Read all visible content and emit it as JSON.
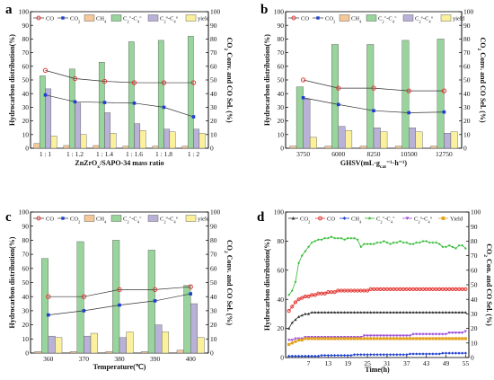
{
  "chart_data": [
    {
      "panel": "a",
      "type": "bar",
      "xlabel": "ZnZrOx/SAPO-34 mass ratio",
      "ylabel": "Hydrocarbon distribution(%)",
      "ylabel_right": "CO2 Conv. and CO Sel. (%)",
      "ylim": [
        0,
        100
      ],
      "ylim_right": [
        0,
        100
      ],
      "categories": [
        "1 : 1",
        "1 : 1.2",
        "1 : 1.4",
        "1 : 1.6",
        "1 : 1.8",
        "1 : 2"
      ],
      "series": [
        {
          "name": "CH4",
          "kind": "bar",
          "color": "#f5c89a",
          "values": [
            3.5,
            2,
            2,
            1.5,
            1.5,
            1.5
          ]
        },
        {
          "name": "C2=-C4=",
          "kind": "bar",
          "color": "#98d49c",
          "values": [
            53,
            58,
            63,
            78,
            79,
            82
          ]
        },
        {
          "name": "C2o-C4o",
          "kind": "bar",
          "color": "#b9b1d8",
          "values": [
            43.5,
            33,
            26,
            18,
            14,
            14
          ]
        },
        {
          "name": "yield",
          "kind": "bar",
          "color": "#fbf19c",
          "values": [
            9,
            10,
            11,
            13,
            12,
            11
          ]
        },
        {
          "name": "CO",
          "kind": "line",
          "axis": "right",
          "color": "#e53935",
          "values": [
            57,
            51,
            49,
            48,
            48,
            48
          ]
        },
        {
          "name": "CO2",
          "kind": "line",
          "axis": "right",
          "color": "#1e3fd0",
          "values": [
            39,
            34,
            33.5,
            33,
            30,
            23
          ]
        }
      ]
    },
    {
      "panel": "b",
      "type": "bar",
      "xlabel": "GHSV(mL·gcat⁻¹·h⁻¹)",
      "ylabel": "Hydrocarbon distribution(%)",
      "ylabel_right": "CO2 Conv. and CO Sel. (%)",
      "ylim": [
        0,
        100
      ],
      "ylim_right": [
        0,
        100
      ],
      "categories": [
        "3750",
        "6000",
        "8250",
        "10500",
        "12750"
      ],
      "series": [
        {
          "name": "CH4",
          "kind": "bar",
          "color": "#f5c89a",
          "values": [
            1.5,
            1.5,
            1.5,
            1.5,
            1.5
          ]
        },
        {
          "name": "C2=-C4=",
          "kind": "bar",
          "color": "#98d49c",
          "values": [
            45,
            76,
            76,
            79,
            80
          ]
        },
        {
          "name": "C2o-C4o",
          "kind": "bar",
          "color": "#b9b1d8",
          "values": [
            36,
            16,
            15,
            15,
            11
          ]
        },
        {
          "name": "yield",
          "kind": "bar",
          "color": "#fbf19c",
          "values": [
            8,
            13,
            12,
            12,
            12
          ]
        },
        {
          "name": "CO",
          "kind": "line",
          "axis": "right",
          "color": "#e53935",
          "values": [
            50,
            44,
            44,
            42,
            42
          ]
        },
        {
          "name": "CO2",
          "kind": "line",
          "axis": "right",
          "color": "#1e3fd0",
          "values": [
            37,
            32,
            27.5,
            26,
            26.5
          ]
        }
      ]
    },
    {
      "panel": "c",
      "type": "bar",
      "xlabel": "Temperature(℃)",
      "ylabel": "Hydrocarbon distribution(%)",
      "ylabel_right": "CO2 Conv. and CO Sel. (%)",
      "ylim": [
        0,
        100
      ],
      "ylim_right": [
        0,
        100
      ],
      "categories": [
        "360",
        "370",
        "380",
        "390",
        "400"
      ],
      "series": [
        {
          "name": "CH4",
          "kind": "bar",
          "color": "#f5c89a",
          "values": [
            1,
            1,
            1,
            1,
            2
          ]
        },
        {
          "name": "C2=-C4=",
          "kind": "bar",
          "color": "#98d49c",
          "values": [
            67,
            79,
            80,
            73,
            48
          ]
        },
        {
          "name": "C2o-C4o",
          "kind": "bar",
          "color": "#b9b1d8",
          "values": [
            12,
            12,
            11,
            20,
            35
          ]
        },
        {
          "name": "yield",
          "kind": "bar",
          "color": "#fbf19c",
          "values": [
            11,
            14,
            15,
            15,
            11
          ]
        },
        {
          "name": "CO",
          "kind": "line",
          "axis": "right",
          "color": "#e53935",
          "values": [
            40,
            40,
            45,
            45,
            47
          ]
        },
        {
          "name": "CO2",
          "kind": "line",
          "axis": "right",
          "color": "#1e3fd0",
          "values": [
            27,
            30,
            34,
            37,
            42
          ]
        }
      ]
    },
    {
      "panel": "d",
      "type": "line",
      "xlabel": "Time(h)",
      "ylabel": "Hydrocarbon distribution(%)",
      "ylabel_right": "CO2 Con. and CO Sel. (%)",
      "ylim": [
        0,
        100
      ],
      "ylim_right": [
        0,
        100
      ],
      "xlim": [
        0,
        56
      ],
      "xticks": [
        7,
        13,
        19,
        25,
        31,
        37,
        43,
        49,
        55
      ],
      "x": [
        1,
        2,
        3,
        4,
        5,
        6,
        7,
        8,
        9,
        10,
        11,
        12,
        13,
        14,
        15,
        16,
        17,
        18,
        19,
        20,
        21,
        22,
        23,
        24,
        25,
        26,
        27,
        28,
        29,
        30,
        31,
        32,
        33,
        34,
        35,
        36,
        37,
        38,
        39,
        40,
        41,
        42,
        43,
        44,
        45,
        46,
        47,
        48,
        49,
        50,
        51,
        52,
        53,
        54,
        55
      ],
      "series": [
        {
          "name": "CO2",
          "marker": "triangle",
          "color": "#333333",
          "values": [
            20,
            24,
            26,
            28,
            29,
            30,
            30,
            31,
            31,
            31,
            31,
            31,
            31,
            31,
            31,
            31,
            31,
            31,
            31,
            31,
            31,
            31,
            31,
            31,
            31,
            31,
            31,
            31,
            31,
            31,
            31,
            31,
            31,
            31,
            31,
            31,
            31,
            31,
            31,
            31,
            31,
            31,
            31,
            31,
            31,
            31,
            31,
            31,
            31,
            31,
            31,
            31,
            31,
            31,
            31
          ]
        },
        {
          "name": "CO",
          "marker": "circle",
          "color": "#e53935",
          "values": [
            32,
            35,
            38,
            40,
            41,
            42,
            42,
            43,
            43,
            44,
            44,
            44,
            45,
            45,
            45,
            46,
            46,
            46,
            46,
            46,
            46,
            46,
            46,
            46,
            46,
            47,
            47,
            47,
            47,
            47,
            47,
            47,
            47,
            47,
            47,
            47,
            47,
            47,
            47,
            47,
            47,
            47,
            47,
            47,
            47,
            47,
            47,
            47,
            47,
            47,
            47,
            47,
            47,
            47,
            47
          ]
        },
        {
          "name": "CH4",
          "marker": "diamond",
          "color": "#1e3fd0",
          "values": [
            1,
            1,
            1,
            1,
            1,
            1,
            1,
            1,
            1,
            1,
            1.5,
            1.5,
            1.5,
            1.5,
            1.5,
            1.5,
            1.5,
            1.5,
            1.5,
            1.5,
            2,
            2,
            2,
            2,
            2,
            2,
            2,
            2,
            2,
            2,
            2,
            2,
            2,
            2,
            2,
            2,
            2,
            2.5,
            2.5,
            2.5,
            2.5,
            2.5,
            2.5,
            2.5,
            2.5,
            2.5,
            2.5,
            3,
            3,
            3,
            3,
            3,
            3,
            3,
            3
          ]
        },
        {
          "name": "C2=-C4=",
          "marker": "star",
          "color": "#2eb82e",
          "values": [
            43,
            46,
            52,
            65,
            70,
            73,
            76,
            79,
            80,
            81,
            81,
            82,
            82,
            83,
            82,
            82,
            82,
            81,
            82,
            82,
            82,
            81,
            76,
            78,
            78,
            78,
            78,
            79,
            79,
            80,
            79,
            78,
            79,
            79,
            80,
            79,
            79,
            78,
            78,
            79,
            79,
            80,
            80,
            79,
            79,
            79,
            78,
            76,
            76,
            77,
            76,
            75,
            77,
            77,
            75
          ]
        },
        {
          "name": "C2o-C4o",
          "marker": "triangle-down",
          "color": "#9c4fd8",
          "values": [
            12,
            12,
            13,
            13,
            13,
            14,
            14,
            14,
            14,
            14,
            14,
            14,
            14,
            14,
            14,
            14,
            14,
            14,
            14,
            14,
            14,
            14,
            14,
            15,
            15,
            15,
            15,
            15,
            15,
            15,
            15,
            15,
            15,
            15,
            15,
            15,
            15,
            15,
            16,
            16,
            16,
            16,
            16,
            16,
            16,
            16,
            16,
            16,
            16,
            17,
            17,
            17,
            17,
            17,
            18
          ]
        },
        {
          "name": "Yield",
          "marker": "square",
          "color": "#e3a21a",
          "values": [
            9,
            10,
            11,
            12,
            12,
            13,
            13,
            13,
            13,
            13,
            13,
            13,
            13,
            13,
            13,
            13,
            13,
            13,
            13,
            13,
            13,
            13,
            13,
            13,
            13,
            13,
            13,
            13,
            13,
            13,
            13,
            13,
            13,
            13,
            13,
            13,
            13,
            13,
            13,
            13,
            13,
            13,
            13,
            13,
            13,
            13,
            13,
            13,
            13,
            13,
            13,
            13,
            13,
            13,
            13
          ]
        }
      ]
    }
  ],
  "legend_labels": {
    "bar_panels": [
      "CO",
      "CO2",
      "CH4",
      "C2=-C4=",
      "C2o-C4o",
      "yield"
    ],
    "panel_d": [
      "CO2",
      "CO",
      "CH4",
      "C2=-C4=",
      "C2o-C4o",
      "Yield"
    ]
  },
  "panel_labels": [
    "a",
    "b",
    "c",
    "d"
  ],
  "yticks": [
    "0",
    "10",
    "20",
    "30",
    "40",
    "50",
    "60",
    "70",
    "80",
    "90",
    "100"
  ],
  "yticks_d": [
    "0",
    "20",
    "40",
    "60",
    "80",
    "100"
  ]
}
